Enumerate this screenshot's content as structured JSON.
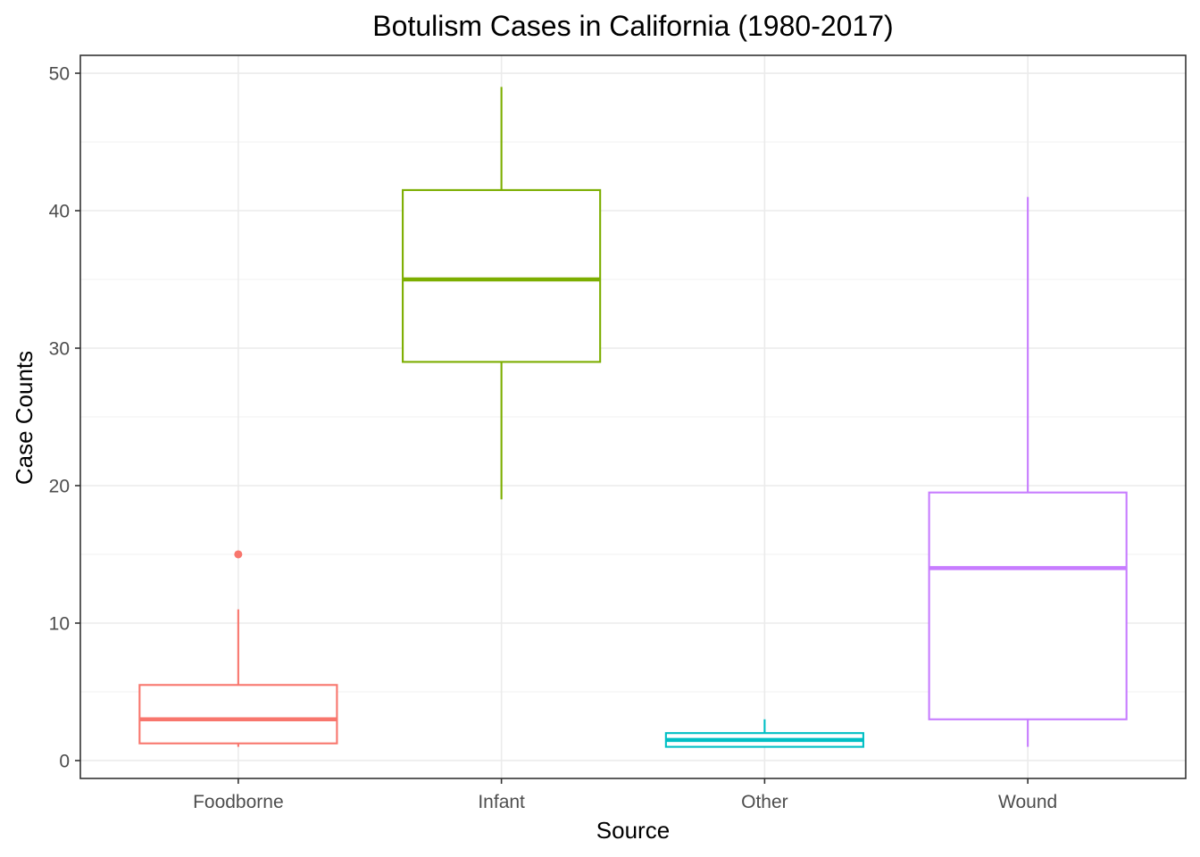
{
  "chart_data": {
    "type": "boxplot",
    "title": "Botulism Cases in California (1980-2017)",
    "xlabel": "Source",
    "ylabel": "Case Counts",
    "ylim": [
      -1.3,
      51.3
    ],
    "yticks": [
      0,
      10,
      20,
      30,
      40,
      50
    ],
    "grid": true,
    "legend": "none",
    "categories": [
      "Foodborne",
      "Infant",
      "Other",
      "Wound"
    ],
    "boxes": [
      {
        "category": "Foodborne",
        "color": "#F8766D",
        "whisker_low": 1,
        "q1": 1.25,
        "median": 3,
        "q3": 5.5,
        "whisker_high": 11,
        "outliers": [
          15
        ]
      },
      {
        "category": "Infant",
        "color": "#7CAE00",
        "whisker_low": 19,
        "q1": 29,
        "median": 35,
        "q3": 41.5,
        "whisker_high": 49,
        "outliers": []
      },
      {
        "category": "Other",
        "color": "#00BFC4",
        "whisker_low": 1,
        "q1": 1,
        "median": 1.5,
        "q3": 2,
        "whisker_high": 3,
        "outliers": []
      },
      {
        "category": "Wound",
        "color": "#C77CFF",
        "whisker_low": 1,
        "q1": 3,
        "median": 14,
        "q3": 19.5,
        "whisker_high": 41,
        "outliers": []
      }
    ]
  }
}
